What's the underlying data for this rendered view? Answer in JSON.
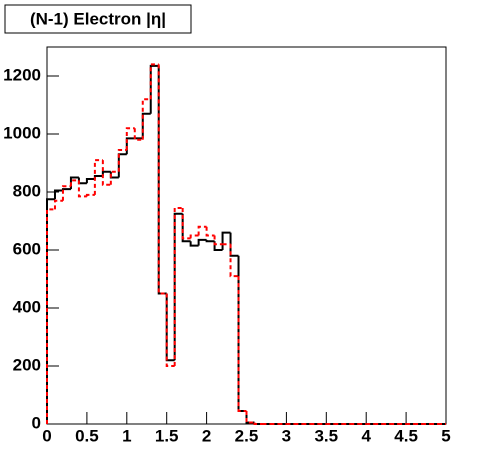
{
  "chart_data": {
    "type": "step-histogram",
    "title": "(N-1) Electron |η|",
    "bins": [
      0,
      0.1,
      0.2,
      0.3,
      0.4,
      0.5,
      0.6,
      0.7,
      0.8,
      0.9,
      1,
      1.1,
      1.2,
      1.3,
      1.4,
      1.5,
      1.6,
      1.7,
      1.8,
      1.9,
      2,
      2.1,
      2.2,
      2.3,
      2.4,
      2.5,
      2.6,
      2.7,
      2.8,
      2.9,
      3,
      3.1,
      3.2,
      3.3,
      3.4,
      3.5,
      3.6,
      3.7,
      3.8,
      3.9,
      4,
      4.1,
      4.2,
      4.3,
      4.4,
      4.5,
      4.6,
      4.7,
      4.8,
      4.9,
      5
    ],
    "series": [
      {
        "color": "#000000",
        "dash": false,
        "values": [
          775,
          805,
          810,
          850,
          830,
          845,
          855,
          870,
          850,
          930,
          985,
          985,
          1070,
          1235,
          450,
          220,
          725,
          630,
          615,
          635,
          630,
          600,
          660,
          580,
          45,
          5,
          0,
          0,
          0,
          0,
          0,
          0,
          0,
          0,
          0,
          0,
          0,
          0,
          0,
          0,
          0,
          0,
          0,
          0,
          0,
          0,
          0,
          0,
          0,
          0
        ]
      },
      {
        "color": "#ff0000",
        "dash": true,
        "values": [
          740,
          770,
          820,
          840,
          785,
          790,
          910,
          825,
          870,
          945,
          1020,
          980,
          1120,
          1240,
          450,
          200,
          745,
          640,
          650,
          680,
          650,
          620,
          620,
          510,
          45,
          5,
          0,
          0,
          0,
          0,
          0,
          0,
          0,
          0,
          0,
          0,
          0,
          0,
          0,
          0,
          0,
          0,
          0,
          0,
          0,
          0,
          0,
          0,
          0,
          0
        ]
      }
    ],
    "xlim": [
      0,
      5
    ],
    "xticks": [
      0,
      0.5,
      1,
      1.5,
      2,
      2.5,
      3,
      3.5,
      4,
      4.5,
      5
    ],
    "ylim": [
      0,
      1300
    ],
    "yticks": [
      0,
      200,
      400,
      600,
      800,
      1000,
      1200
    ]
  }
}
